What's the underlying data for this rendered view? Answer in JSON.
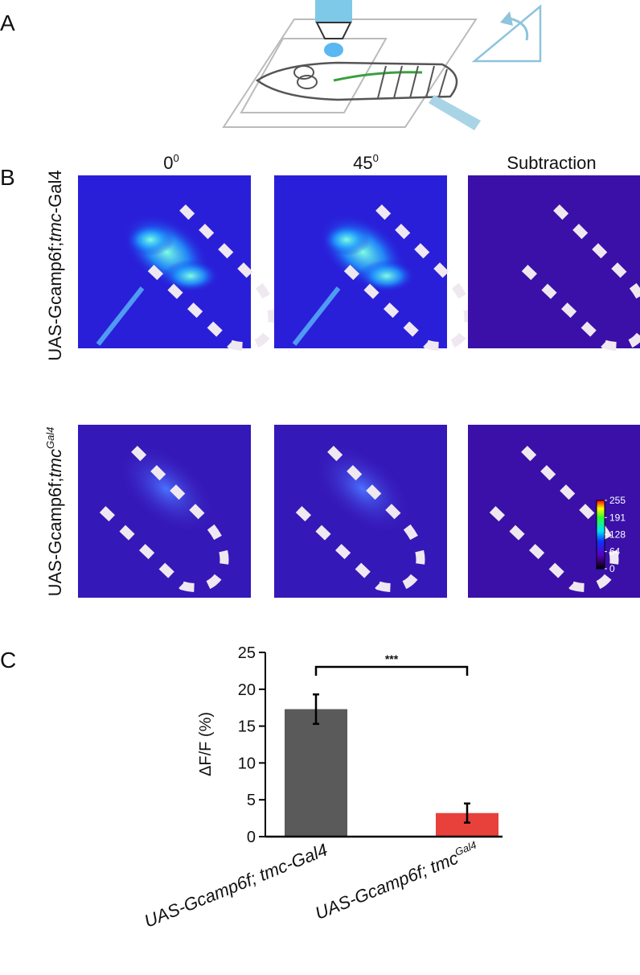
{
  "panels": {
    "a": "A",
    "b": "B",
    "c": "C"
  },
  "columns": [
    {
      "text": "0",
      "sup": "0"
    },
    {
      "text": "45",
      "sup": "0"
    },
    {
      "text": "Subtraction"
    }
  ],
  "rows": [
    {
      "prefix": "UAS-Gcamp6f;",
      "italic": "tmc",
      "suffix": "-Gal4"
    },
    {
      "prefix": "UAS-Gcamp6f;",
      "italic": "tmc",
      "sup": "Gal4"
    }
  ],
  "colorbar": {
    "ticks": [
      255,
      191,
      128,
      64,
      0
    ]
  },
  "chart_data": {
    "type": "bar",
    "ylabel": "ΔF/F (%)",
    "categories": [
      {
        "text": "UAS-Gcamp6f; tmc-Gal4"
      },
      {
        "text": "UAS-Gcamp6f; tmc",
        "sup": "Gal4"
      }
    ],
    "values": [
      17.3,
      3.2
    ],
    "errors": [
      2.0,
      1.3
    ],
    "colors": [
      "#5a5a5a",
      "#e8403a"
    ],
    "ylim": [
      0,
      25
    ],
    "yticks": [
      0,
      5,
      10,
      15,
      20,
      25
    ],
    "significance": "***"
  }
}
